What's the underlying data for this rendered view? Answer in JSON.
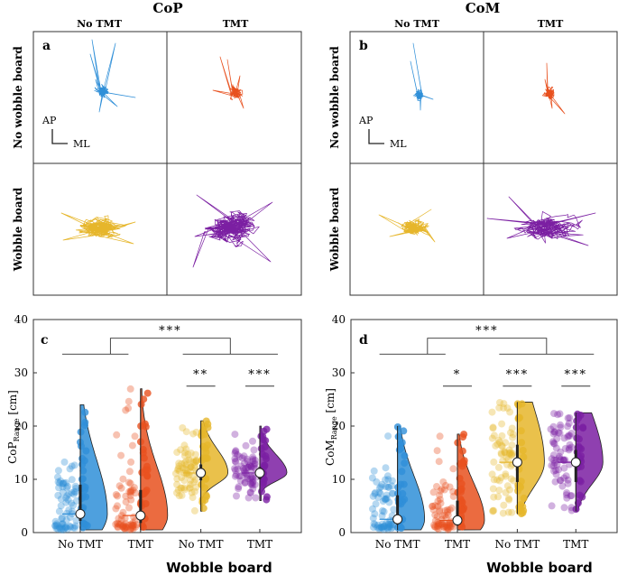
{
  "colors": {
    "blue": "#2f8fd8",
    "orange": "#e8511f",
    "yellow": "#e6b62b",
    "purple": "#7b1fa2",
    "frame": "#333333"
  },
  "top": {
    "groups": [
      {
        "title": "CoP",
        "cols": [
          "No TMT",
          "TMT"
        ],
        "panel_letter": "a"
      },
      {
        "title": "CoM",
        "cols": [
          "No TMT",
          "TMT"
        ],
        "panel_letter": "b"
      }
    ],
    "row_labels": [
      "No wobble board",
      "Wobble board"
    ],
    "scale_ap": "AP",
    "scale_ml": "ML"
  },
  "chart_data": [
    {
      "type": "violin",
      "panel": "c",
      "title": "CoP",
      "ylabel": "CoP",
      "ylabel_sub": "Range",
      "ylabel_unit": "[cm]",
      "xlabel": "Wobble board",
      "ylim": [
        0,
        40
      ],
      "yticks": [
        "0",
        "10",
        "20",
        "30",
        "40"
      ],
      "categories": [
        "No TMT",
        "TMT",
        "No TMT",
        "TMT"
      ],
      "series": [
        {
          "name": "No wobble board / No TMT",
          "median": 3.5,
          "q1": 2.2,
          "q3": 9,
          "min": 0.5,
          "max": 24
        },
        {
          "name": "No wobble board / TMT",
          "median": 3.2,
          "q1": 1.8,
          "q3": 8,
          "min": 0.5,
          "max": 27
        },
        {
          "name": "Wobble board / No TMT",
          "median": 11.2,
          "q1": 9.8,
          "q3": 12.8,
          "min": 4,
          "max": 21
        },
        {
          "name": "Wobble board / TMT",
          "median": 11.2,
          "q1": 10,
          "q3": 12.3,
          "min": 6,
          "max": 20
        }
      ],
      "sig": [
        {
          "label": "***",
          "level": "main"
        },
        {
          "label": "**",
          "level": "pair-wobble-notmt"
        },
        {
          "label": "***",
          "level": "pair-wobble-tmt"
        }
      ]
    },
    {
      "type": "violin",
      "panel": "d",
      "title": "CoM",
      "ylabel": "CoM",
      "ylabel_sub": "Range",
      "ylabel_unit": "[cm]",
      "xlabel": "Wobble board",
      "ylim": [
        0,
        40
      ],
      "yticks": [
        "0",
        "10",
        "20",
        "30",
        "40"
      ],
      "categories": [
        "No TMT",
        "TMT",
        "No TMT",
        "TMT"
      ],
      "series": [
        {
          "name": "No wobble board / No TMT",
          "median": 2.5,
          "q1": 1.5,
          "q3": 7,
          "min": 0.5,
          "max": 20
        },
        {
          "name": "No wobble board / TMT",
          "median": 2.3,
          "q1": 1.3,
          "q3": 6,
          "min": 0.5,
          "max": 18.5
        },
        {
          "name": "Wobble board / No TMT",
          "median": 13.2,
          "q1": 9.5,
          "q3": 16.5,
          "min": 3.5,
          "max": 24.5
        },
        {
          "name": "Wobble board / TMT",
          "median": 13.2,
          "q1": 9.5,
          "q3": 15.5,
          "min": 4,
          "max": 22.5
        }
      ],
      "sig": [
        {
          "label": "***",
          "level": "main"
        },
        {
          "label": "*",
          "level": "pair-nowobble"
        },
        {
          "label": "***",
          "level": "pair-wobble-notmt"
        },
        {
          "label": "***",
          "level": "pair-wobble-tmt"
        }
      ]
    }
  ]
}
